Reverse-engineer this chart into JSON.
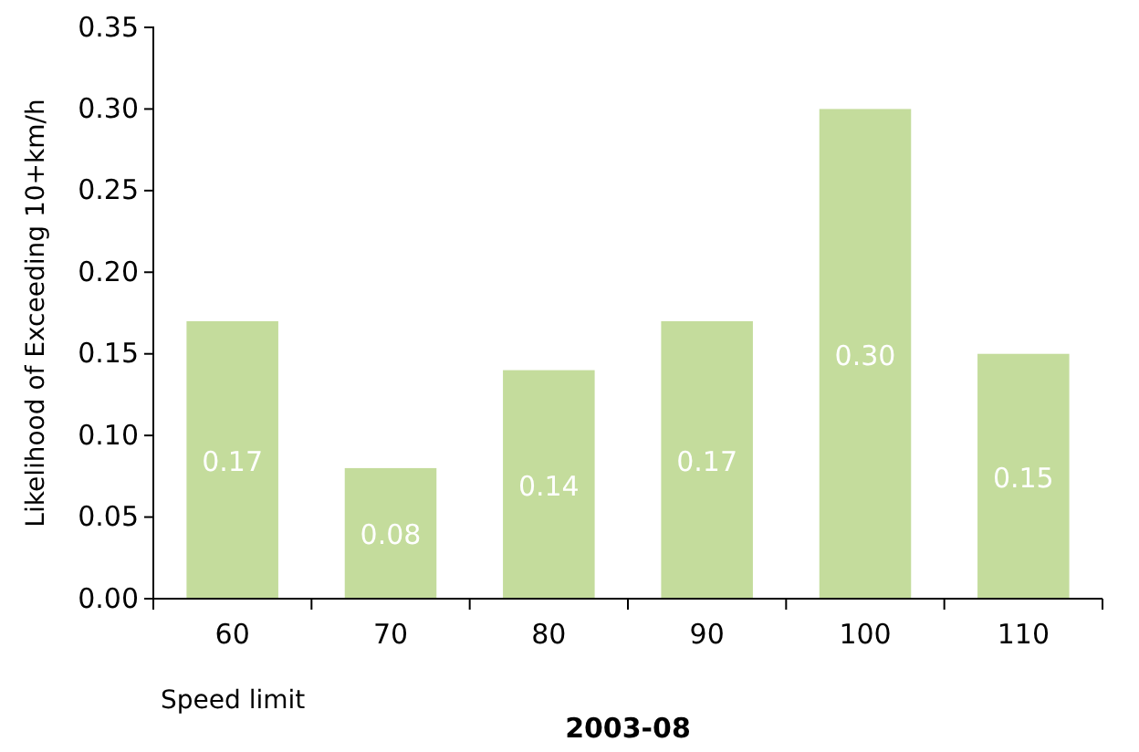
{
  "chart_data": {
    "type": "bar",
    "ylabel": "Likelihood of Exceeding 10+km/h",
    "xlabel": "2003-08",
    "categories": [
      "60",
      "70",
      "80",
      "90",
      "100",
      "110"
    ],
    "values": [
      0.17,
      0.08,
      0.14,
      0.17,
      0.3,
      0.15
    ],
    "value_labels": [
      "0.17",
      "0.08",
      "0.14",
      "0.17",
      "0.30",
      "0.15"
    ],
    "color": "#c4dc9c",
    "ylim": [
      0,
      0.35
    ],
    "yticks": [
      {
        "value": 0,
        "label": "0.00"
      },
      {
        "value": 0.05,
        "label": "0.05"
      },
      {
        "value": 0.1,
        "label": "0.10"
      },
      {
        "value": 0.15,
        "label": "0.15"
      },
      {
        "value": 0.2,
        "label": "0.20"
      },
      {
        "value": 0.25,
        "label": "0.25"
      },
      {
        "value": 0.3,
        "label": "0.30"
      },
      {
        "value": 0.35,
        "label": "0.35"
      }
    ],
    "annotations": [
      "Speed limit"
    ],
    "grid": false
  }
}
